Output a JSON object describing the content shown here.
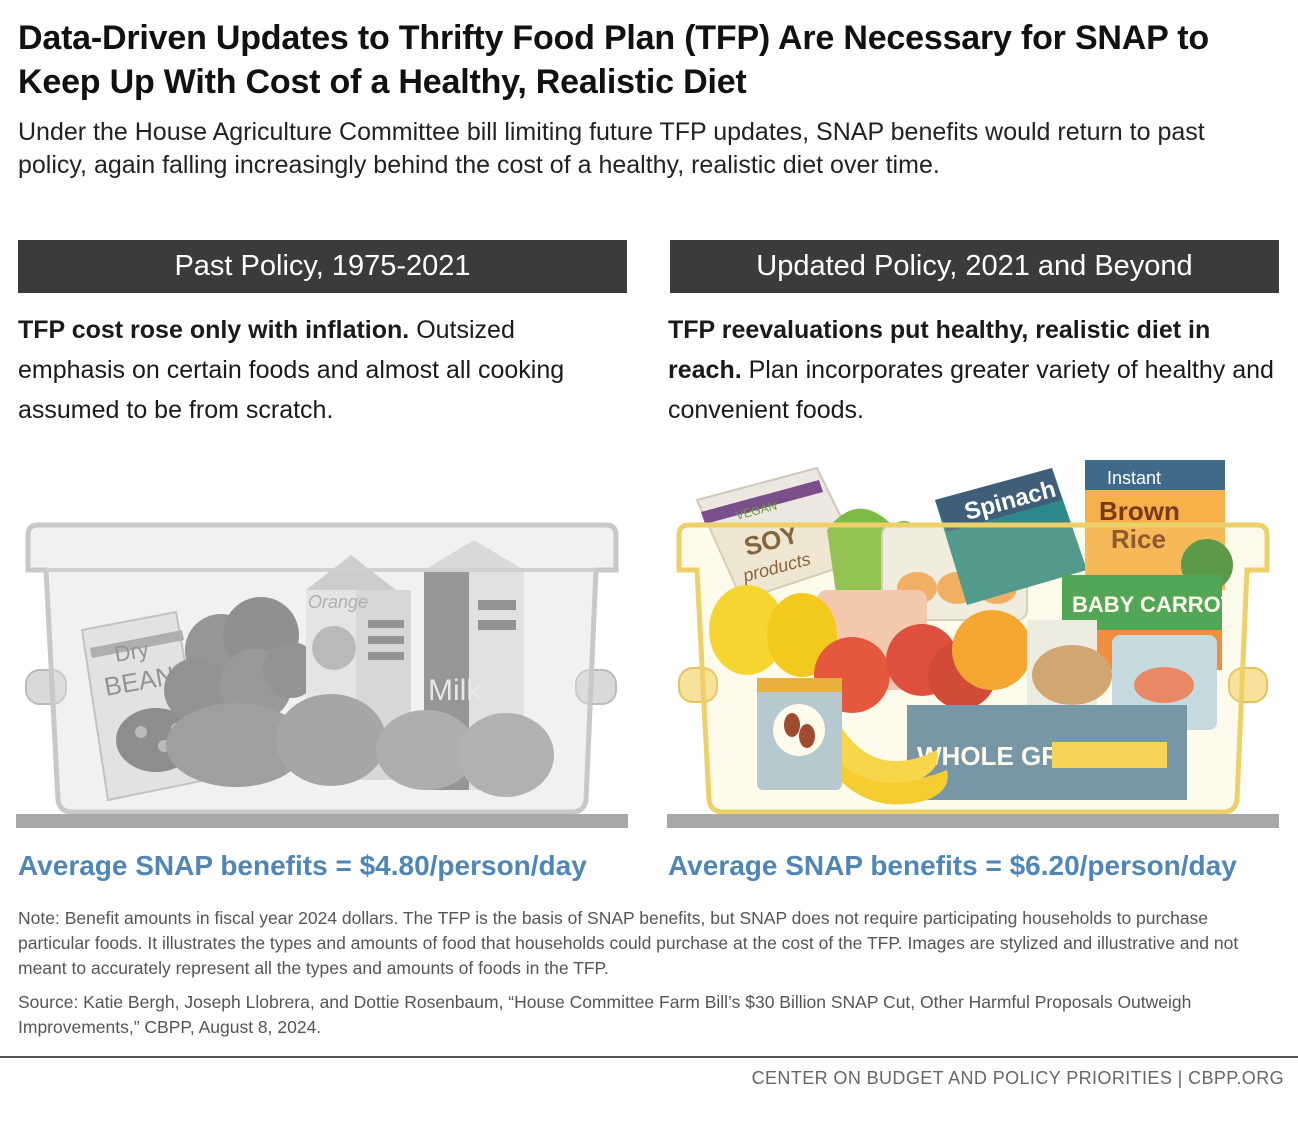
{
  "title": "Data-Driven Updates to Thrifty Food Plan (TFP) Are Necessary for SNAP to Keep Up With Cost of a Healthy, Realistic Diet",
  "subtitle": "Under the House Agriculture Committee bill limiting future TFP updates, SNAP benefits would return to past policy, again falling increasingly behind the cost of a healthy, realistic diet over time.",
  "left": {
    "header": "Past Policy, 1975-2021",
    "desc_bold": "TFP cost rose only with inflation.",
    "desc_rest": " Outsized emphasis on certain foods and almost all cooking assumed to be from scratch.",
    "benefit": "Average SNAP benefits = $4.80/person/day",
    "labels": {
      "beans_1": "Dry",
      "beans_2": "BEANS",
      "orange": "Orange",
      "milk": "Milk"
    }
  },
  "right": {
    "header": "Updated Policy, 2021 and Beyond",
    "desc_bold": "TFP reevaluations put healthy, realistic diet in reach.",
    "desc_rest": " Plan incorporates greater variety of healthy and convenient foods.",
    "benefit": "Average SNAP benefits = $6.20/person/day",
    "labels": {
      "vegan": "VEGAN",
      "soy_1": "SOY",
      "soy_2": "products",
      "spinach": "Spinach",
      "instant": "Instant",
      "rice_1": "Brown",
      "rice_2": "Rice",
      "carrots": "BABY CARROTS",
      "grain": "WHOLE GRAIN"
    }
  },
  "note": "Note: Benefit amounts in fiscal year 2024 dollars. The TFP is the basis of SNAP benefits, but SNAP does not require participating households to purchase particular foods. It illustrates the types and amounts of food that households could purchase at the cost of the TFP. Images are stylized and illustrative and not meant to accurately represent all the types and amounts of foods in the TFP.",
  "source": "Source: Katie Bergh, Joseph Llobrera, and Dottie Rosenbaum, “House Committee Farm Bill’s $30 Billion SNAP Cut, Other Harmful Proposals Outweigh Improvements,” CBPP, August 8, 2024.",
  "footer": "CENTER ON BUDGET AND POLICY PRIORITIES | CBPP.ORG",
  "colors": {
    "accent_blue": "#4f86b5",
    "header_bg": "#3b3b3b"
  }
}
